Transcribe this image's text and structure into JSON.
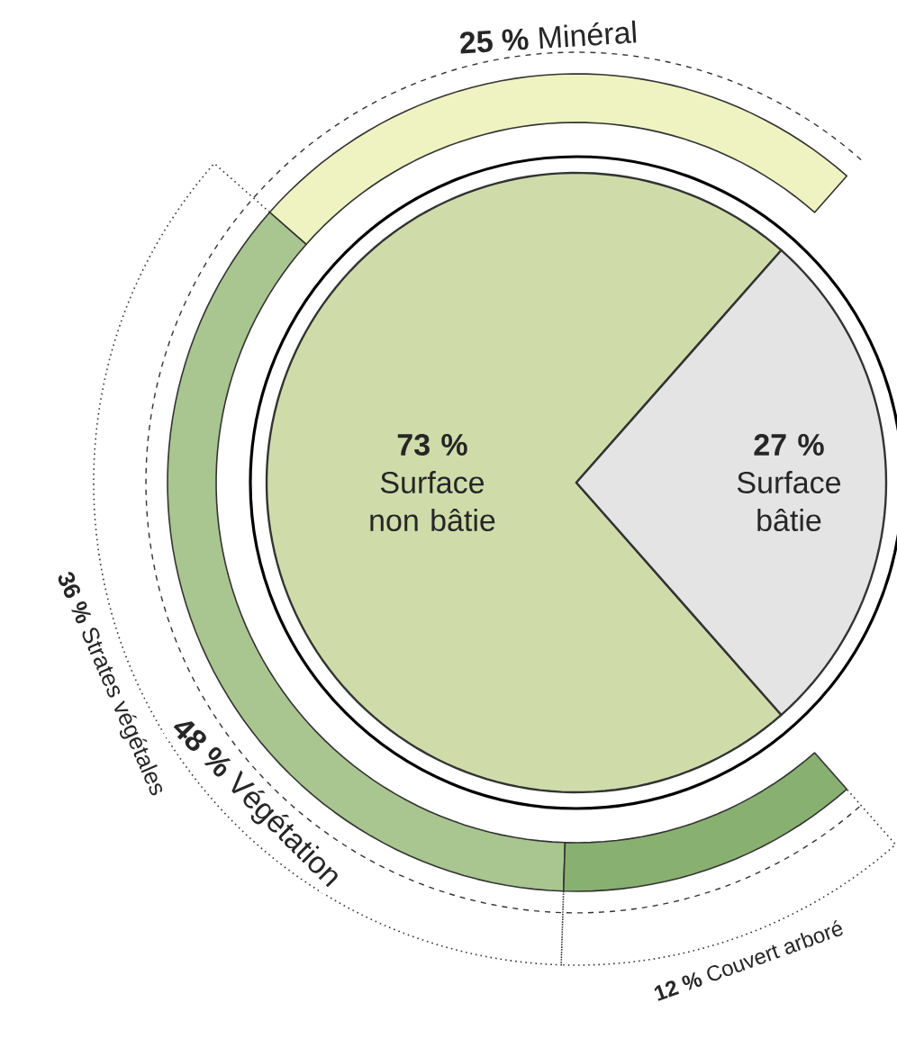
{
  "chart_data": [
    {
      "type": "pie",
      "categories": [
        "Surface non bâtie",
        "Surface bâtie"
      ],
      "values": [
        73,
        27
      ],
      "colors": [
        "#cfdcaa",
        "#e4e4e4"
      ],
      "value_labels": [
        "73 %",
        "27 %"
      ]
    },
    {
      "type": "donut",
      "categories": [
        "Minéral",
        "Strates végétales",
        "Couvert arboré"
      ],
      "values": [
        25,
        36,
        12
      ],
      "colors": [
        "#eef3c1",
        "#a9c590",
        "#88b070"
      ],
      "value_labels": [
        "25 %",
        "36 %",
        "12 %"
      ],
      "annotations": [
        "**48 %** Végétation"
      ]
    }
  ]
}
